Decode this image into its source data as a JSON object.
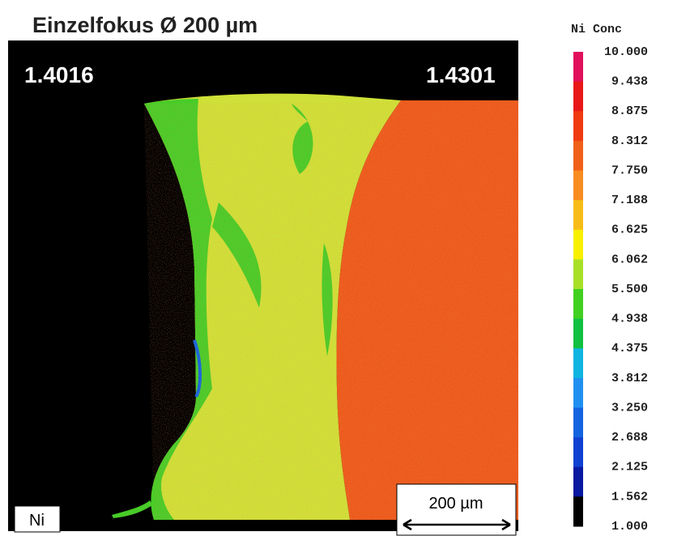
{
  "header": {
    "title": "Einzelfokus Ø 200 µm"
  },
  "image": {
    "left_label": "1.4016",
    "right_label": "1.4301",
    "element_label": "Ni",
    "scale_bar": "200 µm"
  },
  "colorbar": {
    "title": "Ni Conc",
    "ticks": [
      "10.000",
      "9.438",
      "8.875",
      "8.312",
      "7.750",
      "7.188",
      "6.625",
      "6.062",
      "5.500",
      "4.938",
      "4.375",
      "3.812",
      "3.250",
      "2.688",
      "2.125",
      "1.562",
      "1.000"
    ],
    "colors": [
      "#e0105c",
      "#e81818",
      "#f03a10",
      "#f06018",
      "#f88c20",
      "#f8bc18",
      "#f8f000",
      "#a8e028",
      "#40d020",
      "#10c040",
      "#10b4e0",
      "#2090f0",
      "#1464e0",
      "#1040d0",
      "#0818a0",
      "#000000"
    ]
  }
}
